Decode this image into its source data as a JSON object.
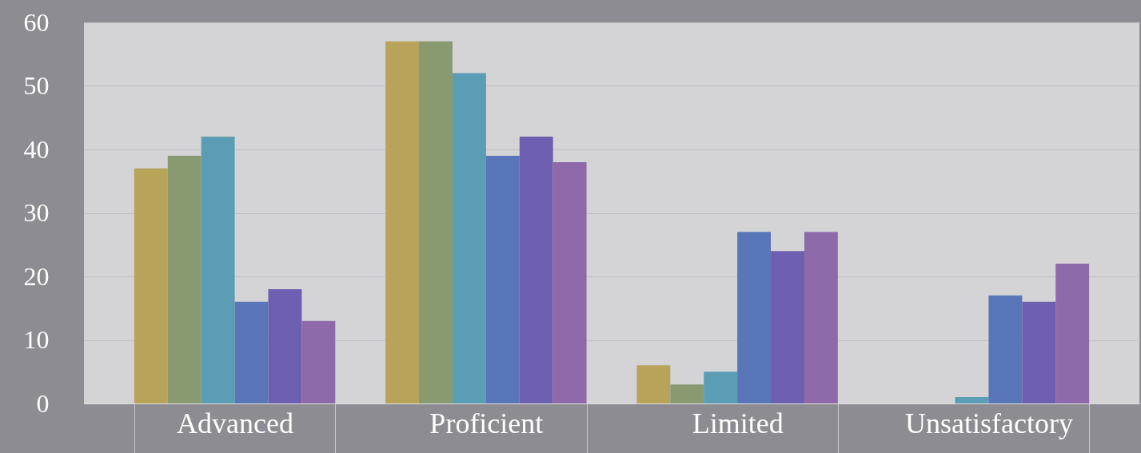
{
  "chart_data": {
    "type": "bar",
    "categories": [
      "Advanced",
      "Proficient",
      "Limited",
      "Unsatisfactory"
    ],
    "series": [
      {
        "color": "#b8a35a",
        "values": [
          37,
          57,
          6,
          0
        ]
      },
      {
        "color": "#8a9a70",
        "values": [
          39,
          57,
          3,
          0
        ]
      },
      {
        "color": "#5b9db5",
        "values": [
          42,
          52,
          5,
          1
        ]
      },
      {
        "color": "#5876b8",
        "values": [
          16,
          39,
          27,
          17
        ]
      },
      {
        "color": "#6f5fb0",
        "values": [
          18,
          42,
          24,
          16
        ]
      },
      {
        "color": "#8e6aaa",
        "values": [
          13,
          38,
          27,
          22
        ]
      }
    ],
    "ylim": [
      0,
      60
    ],
    "yticks": [
      0,
      10,
      20,
      30,
      40,
      50,
      60
    ],
    "grid": "y",
    "legend": false
  }
}
